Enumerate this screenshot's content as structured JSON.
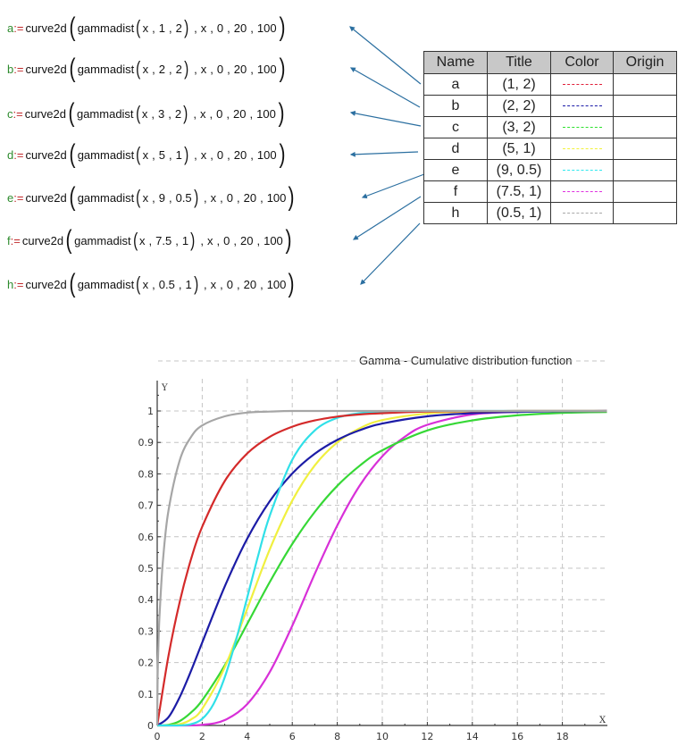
{
  "formulas": [
    {
      "name": "a",
      "func": "curve2d",
      "inner": "gammadist",
      "args": [
        "x",
        "1",
        "2"
      ],
      "rest": [
        "x",
        "0",
        "20",
        "100"
      ]
    },
    {
      "name": "b",
      "func": "curve2d",
      "inner": "gammadist",
      "args": [
        "x",
        "2",
        "2"
      ],
      "rest": [
        "x",
        "0",
        "20",
        "100"
      ]
    },
    {
      "name": "c",
      "func": "curve2d",
      "inner": "gammadist",
      "args": [
        "x",
        "3",
        "2"
      ],
      "rest": [
        "x",
        "0",
        "20",
        "100"
      ]
    },
    {
      "name": "d",
      "func": "curve2d",
      "inner": "gammadist",
      "args": [
        "x",
        "5",
        "1"
      ],
      "rest": [
        "x",
        "0",
        "20",
        "100"
      ]
    },
    {
      "name": "e",
      "func": "curve2d",
      "inner": "gammadist",
      "args": [
        "x",
        "9",
        "0.5"
      ],
      "rest": [
        "x",
        "0",
        "20",
        "100"
      ]
    },
    {
      "name": "f",
      "func": "curve2d",
      "inner": "gammadist",
      "args": [
        "x",
        "7.5",
        "1"
      ],
      "rest": [
        "x",
        "0",
        "20",
        "100"
      ]
    },
    {
      "name": "h",
      "func": "curve2d",
      "inner": "gammadist",
      "args": [
        "x",
        "0.5",
        "1"
      ],
      "rest": [
        "x",
        "0",
        "20",
        "100"
      ]
    }
  ],
  "assign_op": ":=",
  "legend_table": {
    "headers": [
      "Name",
      "Title",
      "Color",
      "Origin"
    ],
    "rows": [
      {
        "name": "a",
        "title": "(1, 2)",
        "color": "#e0203a",
        "origin": ""
      },
      {
        "name": "b",
        "title": "(2, 2)",
        "color": "#1a1aa8",
        "origin": ""
      },
      {
        "name": "c",
        "title": "(3, 2)",
        "color": "#2ee02e",
        "origin": ""
      },
      {
        "name": "d",
        "title": "(5, 1)",
        "color": "#f2f23a",
        "origin": ""
      },
      {
        "name": "e",
        "title": "(9, 0.5)",
        "color": "#2ee8ee",
        "origin": ""
      },
      {
        "name": "f",
        "title": "(7.5, 1)",
        "color": "#e030e0",
        "origin": ""
      },
      {
        "name": "h",
        "title": "(0.5, 1)",
        "color": "#a8a8a8",
        "origin": ""
      }
    ]
  },
  "arrow_color": "#2b6fa0",
  "chart_data": {
    "type": "line",
    "title": "Gamma - Cumulative distribution function",
    "xlabel": "X",
    "ylabel": "Y",
    "xlim": [
      0,
      20
    ],
    "ylim": [
      0,
      1.08
    ],
    "xticks": [
      0,
      2,
      4,
      6,
      8,
      10,
      12,
      14,
      16,
      18
    ],
    "yticks": [
      0,
      0.1,
      0.2,
      0.3,
      0.4,
      0.5,
      0.6,
      0.7,
      0.8,
      0.9,
      1
    ],
    "ytick_labels": [
      "0",
      "0.1",
      "0.2",
      "0.3",
      "0.4",
      "0.5",
      "0.6",
      "0.7",
      "0.8",
      "0.9",
      "1"
    ],
    "grid": true,
    "legend_position": "separate table",
    "series": [
      {
        "name": "a",
        "label": "(1, 2)",
        "color": "#d42a2a",
        "x": [
          0,
          0.5,
          1,
          1.5,
          2,
          3,
          4,
          5,
          6,
          7,
          8,
          9,
          10,
          12,
          14,
          16,
          18,
          20
        ],
        "y": [
          0,
          0.221,
          0.393,
          0.528,
          0.632,
          0.777,
          0.865,
          0.918,
          0.95,
          0.97,
          0.982,
          0.989,
          0.993,
          0.998,
          0.999,
          1,
          1,
          1
        ]
      },
      {
        "name": "b",
        "label": "(2, 2)",
        "color": "#1c1ca6",
        "x": [
          0,
          0.5,
          1,
          1.5,
          2,
          3,
          4,
          5,
          6,
          7,
          8,
          9,
          10,
          12,
          14,
          16,
          18,
          20
        ],
        "y": [
          0,
          0.026,
          0.09,
          0.173,
          0.264,
          0.442,
          0.594,
          0.713,
          0.801,
          0.864,
          0.908,
          0.939,
          0.96,
          0.983,
          0.993,
          0.997,
          0.999,
          1
        ]
      },
      {
        "name": "c",
        "label": "(3, 2)",
        "color": "#36d836",
        "x": [
          0,
          0.5,
          1,
          1.5,
          2,
          3,
          4,
          5,
          6,
          7,
          8,
          9,
          10,
          12,
          14,
          16,
          18,
          20
        ],
        "y": [
          0,
          0.002,
          0.014,
          0.041,
          0.08,
          0.191,
          0.323,
          0.456,
          0.577,
          0.679,
          0.762,
          0.826,
          0.875,
          0.938,
          0.97,
          0.986,
          0.994,
          0.997
        ]
      },
      {
        "name": "d",
        "label": "(5, 1)",
        "color": "#f0f040",
        "x": [
          0,
          0.5,
          1,
          1.5,
          2,
          3,
          4,
          5,
          6,
          7,
          8,
          9,
          10,
          12,
          14,
          16,
          18,
          20
        ],
        "y": [
          0,
          0.0002,
          0.004,
          0.019,
          0.053,
          0.185,
          0.371,
          0.56,
          0.715,
          0.827,
          0.9,
          0.945,
          0.971,
          0.992,
          0.998,
          1,
          1,
          1
        ]
      },
      {
        "name": "e",
        "label": "(9, 0.5)",
        "color": "#30e0e8",
        "x": [
          0,
          1,
          1.5,
          2,
          2.5,
          3,
          3.5,
          4,
          4.5,
          5,
          6,
          7,
          8,
          9,
          10,
          12,
          14,
          16,
          18,
          20
        ],
        "y": [
          0,
          0.0002,
          0.004,
          0.021,
          0.068,
          0.153,
          0.271,
          0.407,
          0.544,
          0.667,
          0.845,
          0.938,
          0.978,
          0.993,
          0.998,
          1,
          1,
          1,
          1,
          1
        ]
      },
      {
        "name": "f",
        "label": "(7.5, 1)",
        "color": "#d830d8",
        "x": [
          0,
          1,
          2,
          3,
          4,
          5,
          6,
          7,
          8,
          9,
          10,
          11,
          12,
          14,
          16,
          18,
          20
        ],
        "y": [
          0,
          0,
          0.002,
          0.017,
          0.068,
          0.17,
          0.317,
          0.482,
          0.636,
          0.763,
          0.856,
          0.918,
          0.956,
          0.989,
          0.997,
          0.999,
          1
        ]
      },
      {
        "name": "h",
        "label": "(0.5, 1)",
        "color": "#a6a6a6",
        "x": [
          0,
          0.02,
          0.05,
          0.1,
          0.25,
          0.5,
          1,
          1.5,
          2,
          3,
          4,
          5,
          6,
          8,
          10,
          14,
          20
        ],
        "y": [
          0,
          0.159,
          0.248,
          0.345,
          0.52,
          0.683,
          0.843,
          0.917,
          0.954,
          0.983,
          0.995,
          0.998,
          1,
          1,
          1,
          1,
          1
        ]
      }
    ]
  }
}
